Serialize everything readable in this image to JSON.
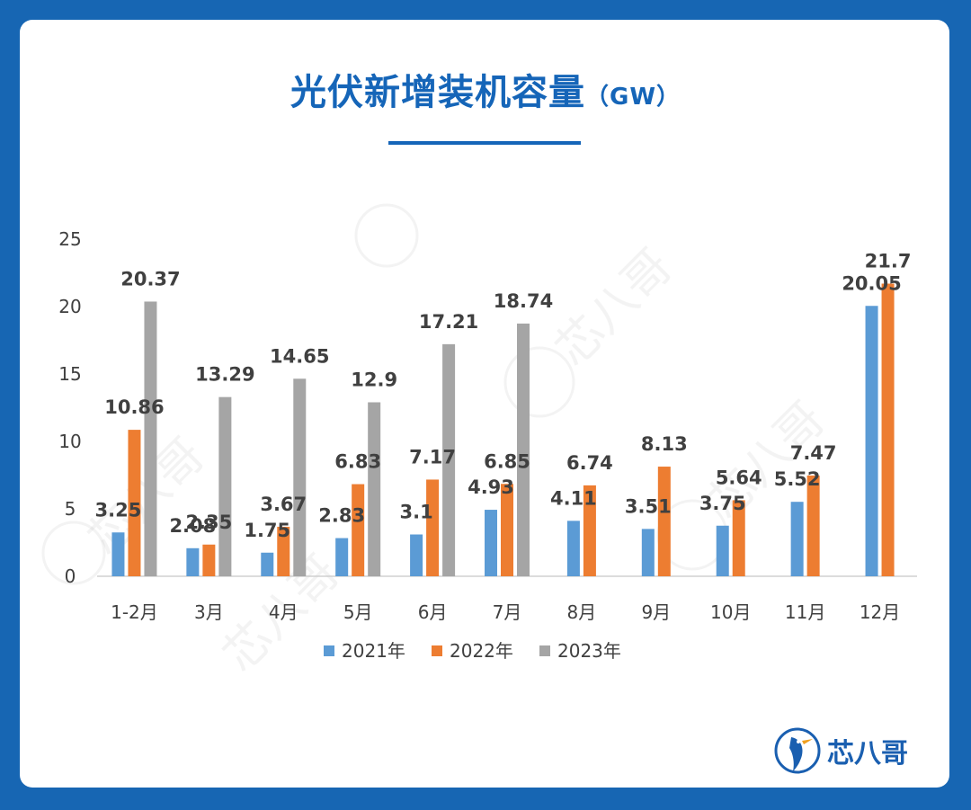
{
  "title": "光伏新增装机容量",
  "title_unit": "（GW）",
  "brand": {
    "name": "芯八哥",
    "logo_icon": "kingfisher-logo-icon"
  },
  "watermark_text": "芯八哥",
  "colors": {
    "background": "#1766b3",
    "accent": "#1565b8",
    "series_2021": "#5b9bd5",
    "series_2022": "#ed7d31",
    "series_2023": "#a5a5a5"
  },
  "chart_data": {
    "type": "bar",
    "title": "光伏新增装机容量（GW）",
    "xlabel": "",
    "ylabel": "",
    "ylim": [
      0,
      25
    ],
    "yticks": [
      0,
      5,
      10,
      15,
      20,
      25
    ],
    "grid": false,
    "legend_position": "bottom",
    "categories": [
      "1-2月",
      "3月",
      "4月",
      "5月",
      "6月",
      "7月",
      "8月",
      "9月",
      "10月",
      "11月",
      "12月"
    ],
    "series": [
      {
        "name": "2021年",
        "color": "#5b9bd5",
        "values": [
          3.25,
          2.08,
          1.75,
          2.83,
          3.1,
          4.93,
          4.11,
          3.51,
          3.75,
          5.52,
          20.05
        ]
      },
      {
        "name": "2022年",
        "color": "#ed7d31",
        "values": [
          10.86,
          2.35,
          3.67,
          6.83,
          7.17,
          6.85,
          6.74,
          8.13,
          5.64,
          7.47,
          21.7
        ]
      },
      {
        "name": "2023年",
        "color": "#a5a5a5",
        "values": [
          20.37,
          13.29,
          14.65,
          12.9,
          17.21,
          18.74,
          null,
          null,
          null,
          null,
          null
        ]
      }
    ]
  }
}
